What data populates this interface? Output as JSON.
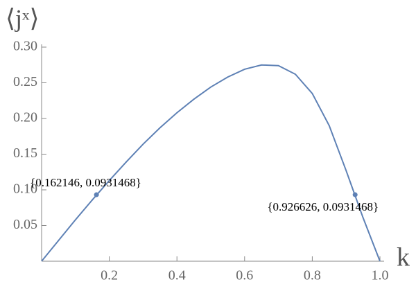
{
  "chart_data": {
    "type": "line",
    "xlabel": "k",
    "ylabel": "⟨jˣ⟩",
    "x": [
      0,
      0.05,
      0.1,
      0.15,
      0.2,
      0.25,
      0.3,
      0.35,
      0.4,
      0.45,
      0.5,
      0.55,
      0.6,
      0.65,
      0.7,
      0.75,
      0.8,
      0.85,
      0.9,
      0.95,
      1.0
    ],
    "values": [
      0,
      0.029,
      0.058,
      0.086,
      0.113,
      0.139,
      0.164,
      0.187,
      0.208,
      0.227,
      0.244,
      0.258,
      0.269,
      0.275,
      0.274,
      0.262,
      0.235,
      0.19,
      0.127,
      0.061,
      0
    ],
    "color": "#5e81b5",
    "points": [
      {
        "x": 0.162146,
        "y": 0.0931468,
        "label": "{0.162146, 0.0931468}"
      },
      {
        "x": 0.926626,
        "y": 0.0931468,
        "label": "{0.926626, 0.0931468}"
      }
    ],
    "xlim": [
      0,
      1.0
    ],
    "ylim": [
      0,
      0.3
    ],
    "xticks": [
      0.2,
      0.4,
      0.6,
      0.8,
      {
        "value": 1.0,
        "label": "1.0"
      }
    ],
    "yticks": [
      0.05,
      {
        "value": 0.1,
        "label": "0.10"
      },
      0.15,
      {
        "value": 0.2,
        "label": "0.20"
      },
      0.25,
      {
        "value": 0.3,
        "label": "0.30"
      }
    ]
  }
}
